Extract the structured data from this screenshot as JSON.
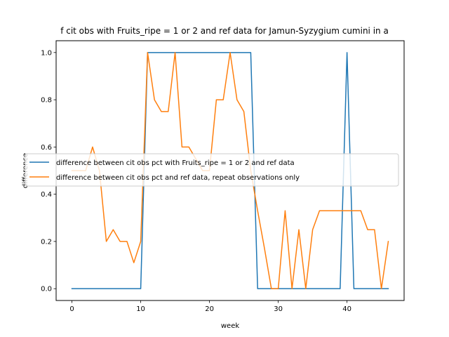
{
  "chart_data": {
    "type": "line",
    "title": "f cit obs with Fruits_ripe = 1 or 2 and ref data for Jamun-Syzygium cumini in a",
    "xlabel": "week",
    "ylabel": "difference",
    "xlim": [
      -2.3,
      48.3
    ],
    "ylim": [
      -0.05,
      1.05
    ],
    "xticks": [
      0,
      10,
      20,
      30,
      40
    ],
    "yticks": [
      0.0,
      0.2,
      0.4,
      0.6,
      0.8,
      1.0
    ],
    "xtick_labels": [
      "0",
      "10",
      "20",
      "30",
      "40"
    ],
    "ytick_labels": [
      "0.0",
      "0.2",
      "0.4",
      "0.6",
      "0.8",
      "1.0"
    ],
    "legend_position": "center",
    "series": [
      {
        "name": "difference between cit obs pct with Fruits_ripe = 1 or 2 and ref data",
        "color": "#1f77b4",
        "x": [
          0,
          1,
          2,
          3,
          4,
          5,
          6,
          7,
          8,
          9,
          10,
          11,
          12,
          13,
          14,
          15,
          16,
          17,
          18,
          19,
          20,
          21,
          22,
          23,
          24,
          25,
          26,
          27,
          28,
          29,
          30,
          31,
          32,
          33,
          34,
          35,
          36,
          37,
          38,
          39,
          40,
          41,
          42,
          43,
          44,
          45,
          46
        ],
        "values": [
          0,
          0,
          0,
          0,
          0,
          0,
          0,
          0,
          0,
          0,
          0,
          1,
          1,
          1,
          1,
          1,
          1,
          1,
          1,
          1,
          1,
          1,
          1,
          1,
          1,
          1,
          1,
          0,
          0,
          0,
          0,
          0,
          0,
          0,
          0,
          0,
          0,
          0,
          0,
          0,
          1,
          0,
          0,
          0,
          0,
          0,
          0
        ]
      },
      {
        "name": "difference between cit obs pct and ref data, repeat observations only",
        "color": "#ff7f0e",
        "x": [
          0,
          1,
          2,
          3,
          4,
          5,
          6,
          7,
          8,
          9,
          10,
          11,
          12,
          13,
          14,
          15,
          16,
          17,
          18,
          19,
          20,
          21,
          22,
          23,
          24,
          25,
          26,
          27,
          28,
          29,
          30,
          31,
          32,
          33,
          34,
          35,
          36,
          37,
          38,
          39,
          40,
          41,
          42,
          43,
          44,
          45,
          46
        ],
        "values": [
          0.5,
          0.5,
          0.5,
          0.6,
          0.5,
          0.2,
          0.25,
          0.2,
          0.2,
          0.11,
          0.2,
          1.0,
          0.8,
          0.75,
          0.75,
          1.0,
          0.6,
          0.6,
          0.55,
          0.5,
          0.5,
          0.8,
          0.8,
          1.0,
          0.8,
          0.75,
          0.5,
          0.33,
          0.17,
          0.0,
          0.0,
          0.33,
          0.0,
          0.25,
          0.0,
          0.25,
          0.33,
          0.33,
          0.33,
          0.33,
          0.33,
          0.33,
          0.33,
          0.25,
          0.25,
          0.0,
          0.2
        ]
      }
    ]
  }
}
